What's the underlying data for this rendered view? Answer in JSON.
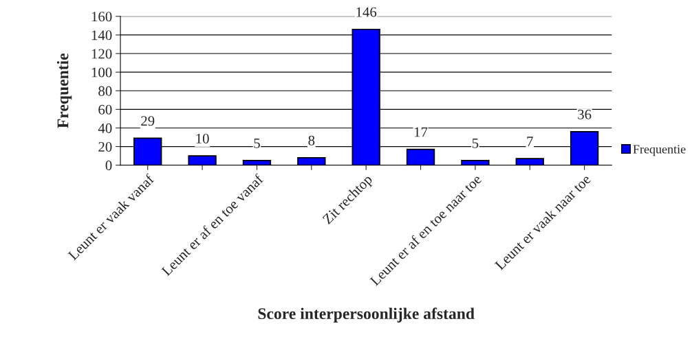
{
  "chart_data": {
    "type": "bar",
    "xlabel": "Score interpersoonlijke afstand",
    "ylabel": "Frequentie",
    "categories": [
      "Leunt er vaak vanaf",
      null,
      "Leunt er af en toe vanaf",
      null,
      "Zit rechtop",
      null,
      "Leunt er af en toe naar toe",
      null,
      "Leunt er vaak naar toe"
    ],
    "series": [
      {
        "name": "Frequentie",
        "color": "#0000ff",
        "values": [
          29,
          10,
          5,
          8,
          146,
          17,
          5,
          7,
          36
        ]
      }
    ],
    "ylim": [
      0,
      160
    ],
    "yticks": [
      0,
      20,
      40,
      60,
      80,
      100,
      120,
      140,
      160
    ],
    "grid": "y",
    "legend": "right",
    "data_labels": true
  }
}
